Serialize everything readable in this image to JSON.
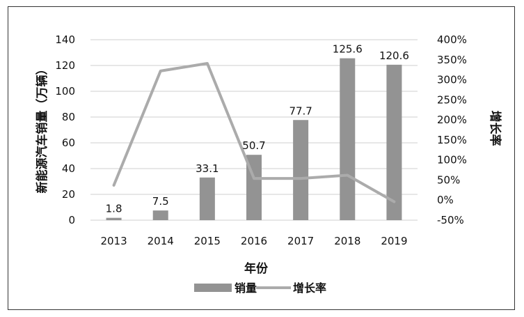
{
  "chart_data": {
    "type": "bar",
    "categories": [
      "2013",
      "2014",
      "2015",
      "2016",
      "2017",
      "2018",
      "2019"
    ],
    "series": [
      {
        "name": "销量",
        "type": "bar",
        "axis": "left",
        "values": [
          1.8,
          7.5,
          33.1,
          50.7,
          77.7,
          125.6,
          120.6
        ],
        "data_labels": [
          "1.8",
          "7.5",
          "33.1",
          "50.7",
          "77.7",
          "125.6",
          "120.6"
        ],
        "color": "#939393"
      },
      {
        "name": "增长率",
        "type": "line",
        "axis": "right",
        "values": [
          37,
          322,
          341,
          54,
          54,
          62,
          -4
        ],
        "color": "#ababab"
      }
    ],
    "xlabel": "年份",
    "ylabel": "新能源汽车销量（万辆）",
    "y2label": "增长率",
    "ylim": [
      0,
      140
    ],
    "y2lim": [
      -50,
      400
    ],
    "yticks": [
      "0",
      "20",
      "40",
      "60",
      "80",
      "100",
      "120",
      "140"
    ],
    "y2ticks": [
      "-50%",
      "0%",
      "50%",
      "100%",
      "150%",
      "200%",
      "250%",
      "300%",
      "350%",
      "400%"
    ],
    "grid": true,
    "legend": "bottom"
  }
}
